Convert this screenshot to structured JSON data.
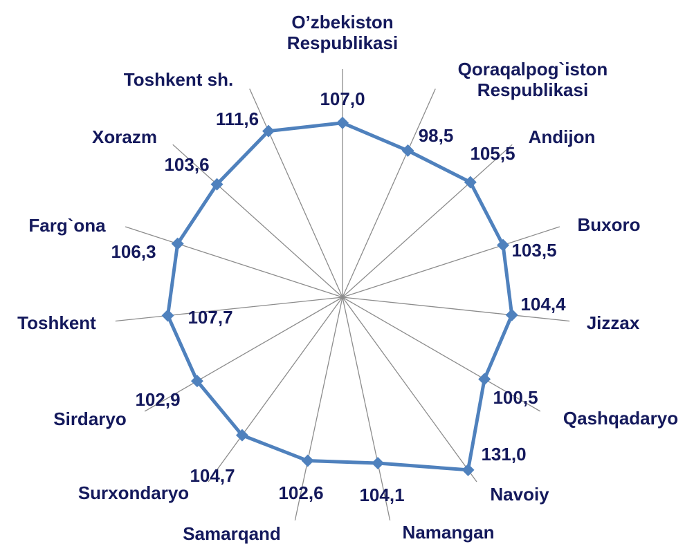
{
  "chart_data": {
    "type": "radar",
    "categories": [
      "O’zbekiston Respublikasi",
      "Qoraqalpog`iston Respublikasi",
      "Andijon",
      "Buxoro",
      "Jizzax",
      "Qashqadaryo",
      "Navoiy",
      "Namangan",
      "Samarqand",
      "Surxondaryo",
      "Sirdaryo",
      "Toshkent",
      "Farg`ona",
      "Xorazm",
      "Toshkent sh."
    ],
    "series": [
      {
        "color": "#4f81bd",
        "values": [
          107.0,
          98.5,
          105.5,
          103.5,
          104.4,
          100.5,
          131.0,
          104.1,
          102.6,
          104.7,
          102.9,
          107.7,
          106.3,
          103.6,
          111.6
        ],
        "value_labels": [
          "107,0",
          "98,5",
          "105,5",
          "103,5",
          "104,4",
          "100,5",
          "131,0",
          "104,1",
          "102,6",
          "104,7",
          "102,9",
          "107,7",
          "106,3",
          "103,6",
          "111,6"
        ]
      }
    ],
    "ylim": [
      0,
      140
    ]
  }
}
